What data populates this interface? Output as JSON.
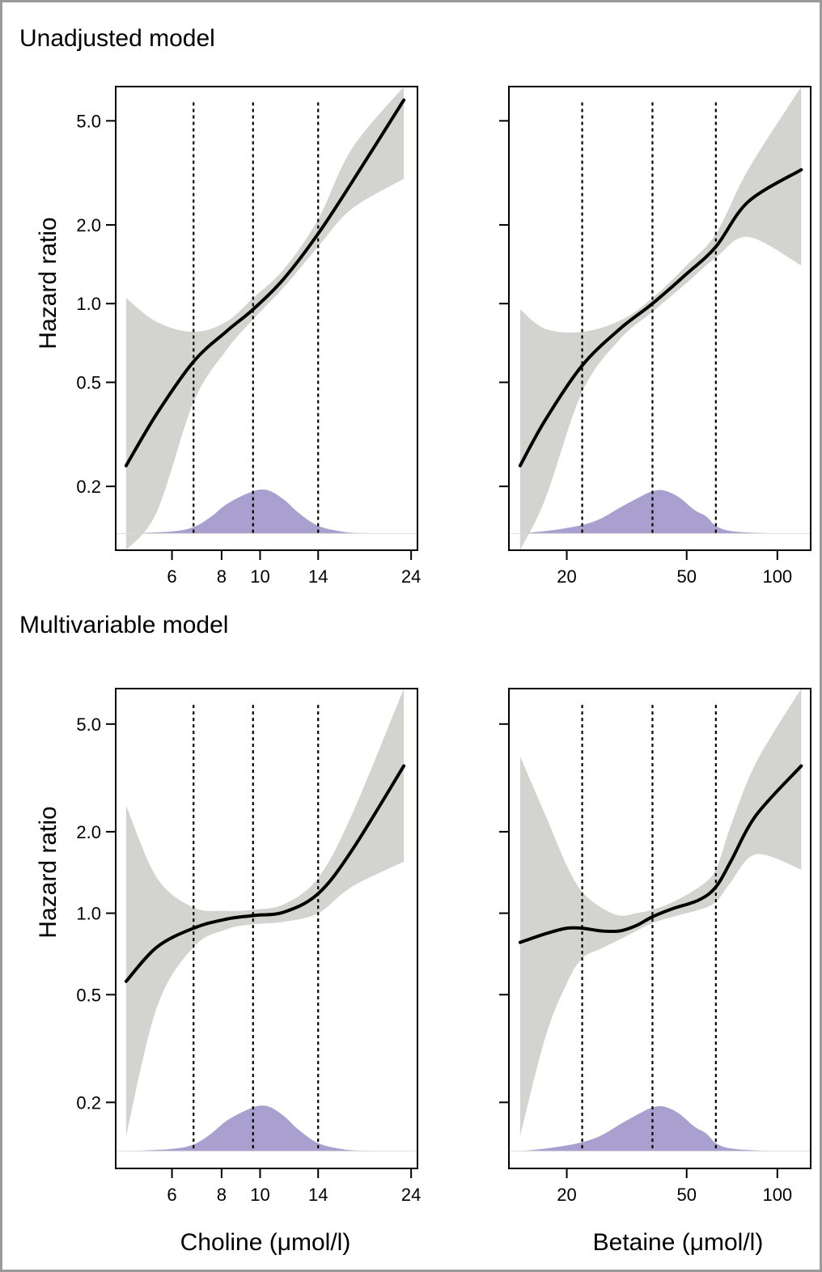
{
  "figure": {
    "section_top_title": "Unadjusted model",
    "section_bottom_title": "Multivariable model",
    "ylabel": "Hazard ratio",
    "xlabel_choline": "Choline (μmol/l)",
    "xlabel_betaine": "Betaine (μmol/l)"
  },
  "colors": {
    "ci_band": "#d3d3cf",
    "density": "#a9a0cf",
    "line": "#000000",
    "border": "#9a9a9a"
  },
  "chart_data": [
    {
      "type": "line",
      "panel": "unadjusted-choline",
      "section": "Unadjusted model",
      "xlabel": "",
      "ylabel": "Hazard ratio",
      "x_scale": "log",
      "y_scale": "log",
      "xlim": [
        4.33,
        24.9
      ],
      "ylim": [
        0.114,
        6.76
      ],
      "xticks": [
        6,
        8,
        10,
        14,
        24
      ],
      "yticks": [
        0.2,
        0.5,
        1.0,
        2.0,
        5.0
      ],
      "ytick_labels": [
        "0.2",
        "0.5",
        "1.0",
        "2.0",
        "5.0"
      ],
      "reference_lines_x": [
        6.8,
        9.6,
        14
      ],
      "x": [
        4.6,
        5.5,
        6.8,
        8.2,
        9.6,
        11.5,
        14,
        17,
        23
      ],
      "hr": [
        0.24,
        0.38,
        0.6,
        0.78,
        0.95,
        1.25,
        1.85,
        2.9,
        6.0
      ],
      "ci_lower": [
        0.1,
        0.16,
        0.42,
        0.66,
        0.87,
        1.16,
        1.65,
        2.3,
        3.0
      ],
      "ci_upper": [
        1.05,
        0.85,
        0.78,
        0.85,
        1.05,
        1.36,
        2.1,
        3.9,
        9.0
      ],
      "density_x": [
        4.6,
        6.0,
        6.8,
        7.5,
        8.3,
        9.6,
        10.5,
        11.5,
        12.5,
        14,
        16,
        18,
        23
      ],
      "density_y": [
        0.0,
        0.05,
        0.15,
        0.38,
        0.7,
        0.98,
        1.0,
        0.78,
        0.48,
        0.18,
        0.05,
        0.01,
        0.0
      ]
    },
    {
      "type": "line",
      "panel": "unadjusted-betaine",
      "section": "Unadjusted model",
      "xlabel": "",
      "ylabel": "",
      "x_scale": "log",
      "y_scale": "log",
      "xlim": [
        12.85,
        129.0
      ],
      "ylim": [
        0.114,
        6.76
      ],
      "xticks": [
        20,
        50,
        100
      ],
      "yticks": [
        0.2,
        0.5,
        1.0,
        2.0,
        5.0
      ],
      "ytick_labels": [
        "",
        "",
        "",
        "",
        ""
      ],
      "reference_lines_x": [
        22.5,
        38.5,
        62.5
      ],
      "x": [
        14,
        17,
        22.5,
        30,
        38.5,
        50,
        62.5,
        80,
        120
      ],
      "hr": [
        0.24,
        0.36,
        0.58,
        0.8,
        1.0,
        1.3,
        1.65,
        2.45,
        3.25
      ],
      "ci_lower": [
        0.1,
        0.18,
        0.46,
        0.73,
        0.93,
        1.2,
        1.5,
        1.8,
        1.4
      ],
      "ci_upper": [
        0.95,
        0.8,
        0.78,
        0.86,
        1.05,
        1.4,
        1.85,
        3.25,
        9.0
      ],
      "density_x": [
        14,
        18,
        22.5,
        26,
        30,
        35,
        38.5,
        42,
        47,
        53,
        58,
        62.5,
        70,
        90,
        120
      ],
      "density_y": [
        0.0,
        0.08,
        0.2,
        0.35,
        0.6,
        0.85,
        0.98,
        1.0,
        0.85,
        0.55,
        0.4,
        0.18,
        0.06,
        0.01,
        0.0
      ]
    },
    {
      "type": "line",
      "panel": "multivariable-choline",
      "section": "Multivariable model",
      "xlabel": "Choline (μmol/l)",
      "ylabel": "Hazard ratio",
      "x_scale": "log",
      "y_scale": "log",
      "xlim": [
        4.33,
        24.9
      ],
      "ylim": [
        0.114,
        6.76
      ],
      "xticks": [
        6,
        8,
        10,
        14,
        24
      ],
      "yticks": [
        0.2,
        0.5,
        1.0,
        2.0,
        5.0
      ],
      "ytick_labels": [
        "0.2",
        "0.5",
        "1.0",
        "2.0",
        "5.0"
      ],
      "reference_lines_x": [
        6.8,
        9.6,
        14
      ],
      "x": [
        4.6,
        5.5,
        6.8,
        8.2,
        9.6,
        11.5,
        14,
        17,
        23
      ],
      "hr": [
        0.56,
        0.75,
        0.88,
        0.95,
        0.98,
        1.01,
        1.18,
        1.7,
        3.5
      ],
      "ci_lower": [
        0.15,
        0.45,
        0.75,
        0.87,
        0.91,
        0.93,
        1.0,
        1.25,
        1.55
      ],
      "ci_upper": [
        2.5,
        1.35,
        1.05,
        1.02,
        1.03,
        1.08,
        1.35,
        2.3,
        9.0
      ],
      "density_x": [
        4.6,
        6.0,
        6.8,
        7.5,
        8.3,
        9.6,
        10.5,
        11.5,
        12.5,
        14,
        16,
        18,
        23
      ],
      "density_y": [
        0.0,
        0.05,
        0.15,
        0.38,
        0.7,
        0.98,
        1.0,
        0.78,
        0.48,
        0.18,
        0.05,
        0.01,
        0.0
      ]
    },
    {
      "type": "line",
      "panel": "multivariable-betaine",
      "section": "Multivariable model",
      "xlabel": "Betaine (μmol/l)",
      "ylabel": "",
      "x_scale": "log",
      "y_scale": "log",
      "xlim": [
        12.85,
        129.0
      ],
      "ylim": [
        0.114,
        6.76
      ],
      "xticks": [
        20,
        50,
        100
      ],
      "yticks": [
        0.2,
        0.5,
        1.0,
        2.0,
        5.0
      ],
      "ytick_labels": [
        "",
        "",
        "",
        "",
        ""
      ],
      "reference_lines_x": [
        22.5,
        38.5,
        62.5
      ],
      "x": [
        14,
        17,
        20,
        22.5,
        26,
        30,
        34,
        38.5,
        45,
        55,
        62.5,
        70,
        85,
        120
      ],
      "hr": [
        0.78,
        0.84,
        0.88,
        0.88,
        0.86,
        0.86,
        0.9,
        0.97,
        1.04,
        1.12,
        1.25,
        1.55,
        2.3,
        3.5
      ],
      "ci_lower": [
        0.15,
        0.35,
        0.55,
        0.68,
        0.74,
        0.8,
        0.86,
        0.92,
        0.97,
        1.03,
        1.1,
        1.3,
        1.65,
        1.45
      ],
      "ci_upper": [
        3.8,
        2.3,
        1.5,
        1.2,
        1.05,
        0.98,
        1.0,
        1.03,
        1.1,
        1.25,
        1.45,
        2.1,
        3.6,
        9.0
      ],
      "density_x": [
        14,
        18,
        22.5,
        26,
        30,
        35,
        38.5,
        42,
        47,
        53,
        58,
        62.5,
        70,
        90,
        120
      ],
      "density_y": [
        0.0,
        0.08,
        0.2,
        0.35,
        0.6,
        0.85,
        0.98,
        1.0,
        0.85,
        0.55,
        0.4,
        0.18,
        0.06,
        0.01,
        0.0
      ]
    }
  ]
}
